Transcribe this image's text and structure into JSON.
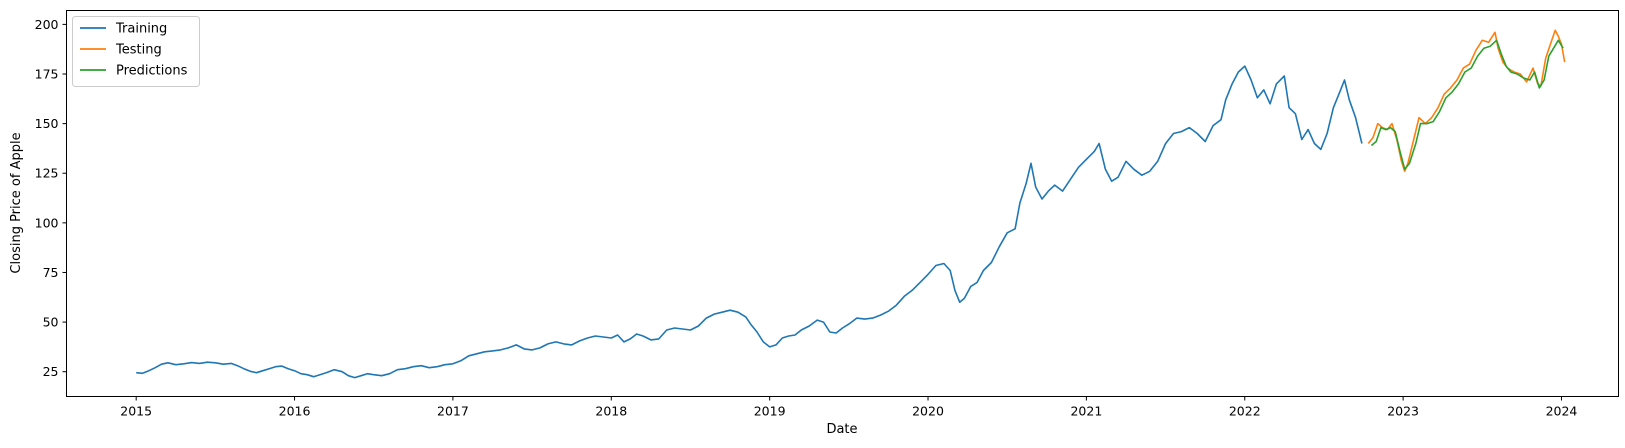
{
  "chart_data": {
    "type": "line",
    "title": "",
    "xlabel": "Date",
    "ylabel": "Closing Price of Apple",
    "xlim": [
      2014.56,
      2024.36
    ],
    "ylim": [
      12.5,
      207
    ],
    "x_ticks": [
      2015,
      2016,
      2017,
      2018,
      2019,
      2020,
      2021,
      2022,
      2023,
      2024
    ],
    "x_tick_labels": [
      "2015",
      "2016",
      "2017",
      "2018",
      "2019",
      "2020",
      "2021",
      "2022",
      "2023",
      "2024"
    ],
    "y_ticks": [
      25,
      50,
      75,
      100,
      125,
      150,
      175,
      200
    ],
    "y_tick_labels": [
      "25",
      "50",
      "75",
      "100",
      "125",
      "150",
      "175",
      "200"
    ],
    "grid": false,
    "legend_position": "top-left",
    "series": [
      {
        "name": "Training",
        "color": "#1f77b4",
        "points": [
          [
            2015.0,
            24.5
          ],
          [
            2015.04,
            24.2
          ],
          [
            2015.08,
            25.5
          ],
          [
            2015.12,
            27.0
          ],
          [
            2015.16,
            28.8
          ],
          [
            2015.2,
            29.5
          ],
          [
            2015.25,
            28.5
          ],
          [
            2015.3,
            29.0
          ],
          [
            2015.35,
            29.6
          ],
          [
            2015.4,
            29.2
          ],
          [
            2015.45,
            29.8
          ],
          [
            2015.5,
            29.5
          ],
          [
            2015.55,
            28.8
          ],
          [
            2015.6,
            29.2
          ],
          [
            2015.64,
            28.0
          ],
          [
            2015.68,
            26.5
          ],
          [
            2015.72,
            25.2
          ],
          [
            2015.76,
            24.5
          ],
          [
            2015.8,
            25.5
          ],
          [
            2015.84,
            26.5
          ],
          [
            2015.88,
            27.5
          ],
          [
            2015.92,
            27.8
          ],
          [
            2015.96,
            26.5
          ],
          [
            2016.0,
            25.5
          ],
          [
            2016.04,
            24.0
          ],
          [
            2016.08,
            23.5
          ],
          [
            2016.12,
            22.5
          ],
          [
            2016.16,
            23.5
          ],
          [
            2016.2,
            24.5
          ],
          [
            2016.25,
            26.0
          ],
          [
            2016.3,
            25.0
          ],
          [
            2016.34,
            23.0
          ],
          [
            2016.38,
            22.0
          ],
          [
            2016.42,
            23.0
          ],
          [
            2016.46,
            24.0
          ],
          [
            2016.5,
            23.5
          ],
          [
            2016.55,
            23.0
          ],
          [
            2016.6,
            24.0
          ],
          [
            2016.65,
            26.0
          ],
          [
            2016.7,
            26.5
          ],
          [
            2016.75,
            27.5
          ],
          [
            2016.8,
            28.0
          ],
          [
            2016.85,
            27.0
          ],
          [
            2016.9,
            27.5
          ],
          [
            2016.95,
            28.5
          ],
          [
            2017.0,
            29.0
          ],
          [
            2017.05,
            30.5
          ],
          [
            2017.1,
            33.0
          ],
          [
            2017.15,
            34.0
          ],
          [
            2017.2,
            35.0
          ],
          [
            2017.25,
            35.5
          ],
          [
            2017.3,
            36.0
          ],
          [
            2017.35,
            37.0
          ],
          [
            2017.4,
            38.5
          ],
          [
            2017.45,
            36.5
          ],
          [
            2017.5,
            36.0
          ],
          [
            2017.55,
            37.0
          ],
          [
            2017.6,
            39.0
          ],
          [
            2017.65,
            40.0
          ],
          [
            2017.7,
            39.0
          ],
          [
            2017.75,
            38.5
          ],
          [
            2017.8,
            40.5
          ],
          [
            2017.85,
            42.0
          ],
          [
            2017.9,
            43.0
          ],
          [
            2017.95,
            42.5
          ],
          [
            2018.0,
            42.0
          ],
          [
            2018.04,
            43.5
          ],
          [
            2018.08,
            40.0
          ],
          [
            2018.12,
            41.5
          ],
          [
            2018.16,
            44.0
          ],
          [
            2018.2,
            43.0
          ],
          [
            2018.25,
            41.0
          ],
          [
            2018.3,
            41.5
          ],
          [
            2018.35,
            46.0
          ],
          [
            2018.4,
            47.0
          ],
          [
            2018.45,
            46.5
          ],
          [
            2018.5,
            46.0
          ],
          [
            2018.55,
            48.0
          ],
          [
            2018.6,
            52.0
          ],
          [
            2018.65,
            54.0
          ],
          [
            2018.7,
            55.0
          ],
          [
            2018.75,
            56.0
          ],
          [
            2018.8,
            55.0
          ],
          [
            2018.85,
            52.5
          ],
          [
            2018.88,
            49.0
          ],
          [
            2018.92,
            45.0
          ],
          [
            2018.96,
            40.0
          ],
          [
            2019.0,
            37.5
          ],
          [
            2019.04,
            38.5
          ],
          [
            2019.08,
            42.0
          ],
          [
            2019.12,
            43.0
          ],
          [
            2019.16,
            43.5
          ],
          [
            2019.2,
            46.0
          ],
          [
            2019.25,
            48.0
          ],
          [
            2019.3,
            51.0
          ],
          [
            2019.34,
            50.0
          ],
          [
            2019.38,
            45.0
          ],
          [
            2019.42,
            44.5
          ],
          [
            2019.46,
            47.0
          ],
          [
            2019.5,
            49.0
          ],
          [
            2019.55,
            52.0
          ],
          [
            2019.6,
            51.5
          ],
          [
            2019.65,
            52.0
          ],
          [
            2019.7,
            53.5
          ],
          [
            2019.75,
            55.5
          ],
          [
            2019.8,
            58.5
          ],
          [
            2019.85,
            63.0
          ],
          [
            2019.9,
            66.0
          ],
          [
            2019.95,
            70.0
          ],
          [
            2020.0,
            74.0
          ],
          [
            2020.05,
            78.5
          ],
          [
            2020.1,
            79.5
          ],
          [
            2020.14,
            76.0
          ],
          [
            2020.17,
            66.0
          ],
          [
            2020.2,
            60.0
          ],
          [
            2020.23,
            62.0
          ],
          [
            2020.27,
            68.0
          ],
          [
            2020.31,
            70.0
          ],
          [
            2020.35,
            76.0
          ],
          [
            2020.4,
            80.0
          ],
          [
            2020.45,
            88.0
          ],
          [
            2020.5,
            95.0
          ],
          [
            2020.55,
            97.0
          ],
          [
            2020.58,
            110.0
          ],
          [
            2020.62,
            120.0
          ],
          [
            2020.65,
            130.0
          ],
          [
            2020.68,
            118.0
          ],
          [
            2020.72,
            112.0
          ],
          [
            2020.76,
            116.0
          ],
          [
            2020.8,
            119.0
          ],
          [
            2020.85,
            116.0
          ],
          [
            2020.9,
            122.0
          ],
          [
            2020.95,
            128.0
          ],
          [
            2021.0,
            132.0
          ],
          [
            2021.05,
            136.0
          ],
          [
            2021.08,
            140.0
          ],
          [
            2021.12,
            127.0
          ],
          [
            2021.16,
            121.0
          ],
          [
            2021.2,
            123.0
          ],
          [
            2021.25,
            131.0
          ],
          [
            2021.3,
            127.0
          ],
          [
            2021.35,
            124.0
          ],
          [
            2021.4,
            126.0
          ],
          [
            2021.45,
            131.0
          ],
          [
            2021.5,
            140.0
          ],
          [
            2021.55,
            145.0
          ],
          [
            2021.6,
            146.0
          ],
          [
            2021.65,
            148.0
          ],
          [
            2021.7,
            145.0
          ],
          [
            2021.75,
            141.0
          ],
          [
            2021.8,
            149.0
          ],
          [
            2021.85,
            152.0
          ],
          [
            2021.88,
            162.0
          ],
          [
            2021.92,
            170.0
          ],
          [
            2021.96,
            176.0
          ],
          [
            2022.0,
            179.0
          ],
          [
            2022.04,
            172.0
          ],
          [
            2022.08,
            163.0
          ],
          [
            2022.12,
            167.0
          ],
          [
            2022.16,
            160.0
          ],
          [
            2022.2,
            170.0
          ],
          [
            2022.25,
            174.0
          ],
          [
            2022.28,
            158.0
          ],
          [
            2022.32,
            155.0
          ],
          [
            2022.36,
            142.0
          ],
          [
            2022.4,
            147.0
          ],
          [
            2022.44,
            140.0
          ],
          [
            2022.48,
            137.0
          ],
          [
            2022.52,
            145.0
          ],
          [
            2022.56,
            158.0
          ],
          [
            2022.6,
            166.0
          ],
          [
            2022.63,
            172.0
          ],
          [
            2022.66,
            162.0
          ],
          [
            2022.7,
            153.0
          ],
          [
            2022.74,
            140.0
          ]
        ]
      },
      {
        "name": "Testing",
        "color": "#ff7f0e",
        "points": [
          [
            2022.78,
            140.0
          ],
          [
            2022.81,
            143.0
          ],
          [
            2022.84,
            150.0
          ],
          [
            2022.87,
            148.0
          ],
          [
            2022.9,
            147.0
          ],
          [
            2022.93,
            150.0
          ],
          [
            2022.96,
            142.0
          ],
          [
            2022.99,
            131.0
          ],
          [
            2023.01,
            126.0
          ],
          [
            2023.03,
            130.0
          ],
          [
            2023.07,
            143.0
          ],
          [
            2023.1,
            153.0
          ],
          [
            2023.14,
            150.0
          ],
          [
            2023.18,
            153.0
          ],
          [
            2023.22,
            158.0
          ],
          [
            2023.26,
            165.0
          ],
          [
            2023.3,
            168.0
          ],
          [
            2023.34,
            172.0
          ],
          [
            2023.38,
            178.0
          ],
          [
            2023.42,
            180.0
          ],
          [
            2023.46,
            187.0
          ],
          [
            2023.5,
            192.0
          ],
          [
            2023.54,
            191.0
          ],
          [
            2023.58,
            196.0
          ],
          [
            2023.6,
            188.0
          ],
          [
            2023.63,
            181.0
          ],
          [
            2023.66,
            178.0
          ],
          [
            2023.7,
            176.0
          ],
          [
            2023.74,
            175.0
          ],
          [
            2023.78,
            171.0
          ],
          [
            2023.82,
            178.0
          ],
          [
            2023.85,
            170.0
          ],
          [
            2023.87,
            169.0
          ],
          [
            2023.9,
            183.0
          ],
          [
            2023.93,
            190.0
          ],
          [
            2023.96,
            197.0
          ],
          [
            2023.98,
            194.0
          ],
          [
            2024.0,
            190.0
          ],
          [
            2024.02,
            181.0
          ]
        ]
      },
      {
        "name": "Predictions",
        "color": "#2ca02c",
        "points": [
          [
            2022.8,
            139.0
          ],
          [
            2022.83,
            141.0
          ],
          [
            2022.86,
            148.0
          ],
          [
            2022.89,
            147.0
          ],
          [
            2022.92,
            148.0
          ],
          [
            2022.95,
            146.0
          ],
          [
            2022.98,
            136.0
          ],
          [
            2023.01,
            127.0
          ],
          [
            2023.04,
            130.0
          ],
          [
            2023.08,
            140.0
          ],
          [
            2023.11,
            150.0
          ],
          [
            2023.15,
            150.0
          ],
          [
            2023.19,
            151.0
          ],
          [
            2023.23,
            156.0
          ],
          [
            2023.27,
            163.0
          ],
          [
            2023.31,
            166.0
          ],
          [
            2023.35,
            170.0
          ],
          [
            2023.39,
            176.0
          ],
          [
            2023.43,
            178.0
          ],
          [
            2023.47,
            184.0
          ],
          [
            2023.51,
            188.0
          ],
          [
            2023.55,
            189.0
          ],
          [
            2023.59,
            192.0
          ],
          [
            2023.62,
            185.0
          ],
          [
            2023.65,
            179.0
          ],
          [
            2023.68,
            176.0
          ],
          [
            2023.72,
            175.0
          ],
          [
            2023.76,
            173.0
          ],
          [
            2023.8,
            172.0
          ],
          [
            2023.83,
            176.0
          ],
          [
            2023.86,
            168.0
          ],
          [
            2023.89,
            172.0
          ],
          [
            2023.92,
            184.0
          ],
          [
            2023.95,
            188.0
          ],
          [
            2023.98,
            192.0
          ],
          [
            2024.01,
            188.0
          ]
        ]
      }
    ]
  }
}
